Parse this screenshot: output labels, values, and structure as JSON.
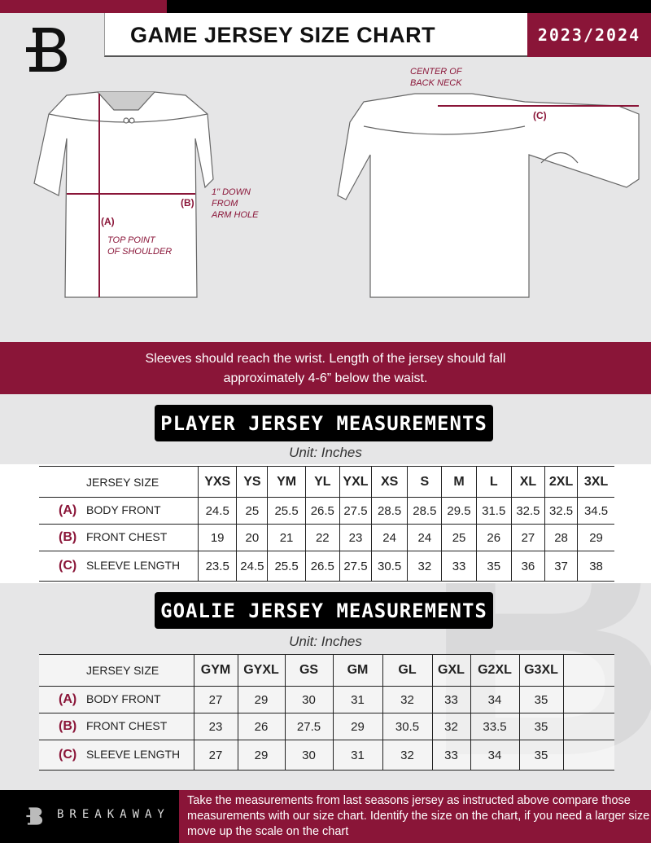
{
  "header": {
    "title": "GAME JERSEY SIZE CHART",
    "season": "2023/2024",
    "brand_color": "#8a1538"
  },
  "diagram": {
    "label_a": "(A)",
    "note_a": "TOP POINT\nOF SHOULDER",
    "label_b": "(B)",
    "note_b": "1\" DOWN\nFROM\nARM HOLE",
    "label_c": "(C)",
    "note_c": "CENTER OF\nBACK NECK"
  },
  "banner": {
    "line1": "Sleeves should reach the wrist. Length of the jersey should fall",
    "line2": "approximately 4-6” below the waist."
  },
  "player": {
    "title": "PLAYER JERSEY MEASUREMENTS",
    "unit": "Unit: Inches",
    "header_label": "JERSEY SIZE",
    "sizes": [
      "YXS",
      "YS",
      "YM",
      "YL",
      "YXL",
      "XS",
      "S",
      "M",
      "L",
      "XL",
      "2XL",
      "3XL"
    ],
    "rows": [
      {
        "code": "(A)",
        "name": "BODY FRONT",
        "values": [
          "24.5",
          "25",
          "25.5",
          "26.5",
          "27.5",
          "28.5",
          "28.5",
          "29.5",
          "31.5",
          "32.5",
          "32.5",
          "34.5"
        ]
      },
      {
        "code": "(B)",
        "name": "FRONT CHEST",
        "values": [
          "19",
          "20",
          "21",
          "22",
          "23",
          "24",
          "24",
          "25",
          "26",
          "27",
          "28",
          "29"
        ]
      },
      {
        "code": "(C)",
        "name": "SLEEVE LENGTH",
        "values": [
          "23.5",
          "24.5",
          "25.5",
          "26.5",
          "27.5",
          "30.5",
          "32",
          "33",
          "35",
          "36",
          "37",
          "38"
        ]
      }
    ]
  },
  "goalie": {
    "title": "GOALIE JERSEY MEASUREMENTS",
    "unit": "Unit: Inches",
    "header_label": "JERSEY SIZE",
    "sizes": [
      "GYM",
      "GYXL",
      "GS",
      "GM",
      "GL",
      "GXL",
      "G2XL",
      "G3XL",
      ""
    ],
    "rows": [
      {
        "code": "(A)",
        "name": "BODY FRONT",
        "values": [
          "27",
          "29",
          "30",
          "31",
          "32",
          "33",
          "34",
          "35",
          ""
        ]
      },
      {
        "code": "(B)",
        "name": "FRONT CHEST",
        "values": [
          "23",
          "26",
          "27.5",
          "29",
          "30.5",
          "32",
          "33.5",
          "35",
          ""
        ]
      },
      {
        "code": "(C)",
        "name": "SLEEVE LENGTH",
        "values": [
          "27",
          "29",
          "30",
          "31",
          "32",
          "33",
          "34",
          "35",
          ""
        ]
      }
    ]
  },
  "footer": {
    "brand": "BREAKAWAY",
    "text": "Take the measurements from last seasons jersey as instructed above compare those measurements  with our size chart. Identify the size on the chart, if you need a larger size move up the scale on the chart"
  }
}
